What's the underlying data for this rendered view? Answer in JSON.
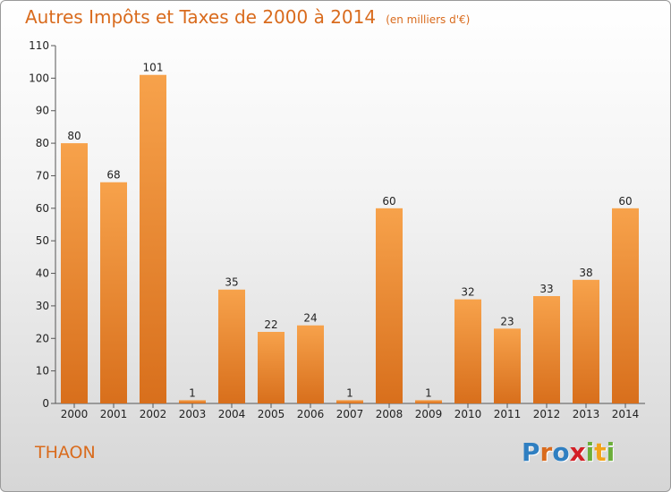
{
  "title": "Autres Impôts et Taxes de 2000 à 2014",
  "unit": "(en milliers d'€)",
  "town": "THAON",
  "logo": {
    "letters": [
      "P",
      "r",
      "o",
      "x",
      "i",
      "t",
      "i"
    ],
    "colors": [
      "#2f7fc1",
      "#d96b1d",
      "#2f7fc1",
      "#d31f26",
      "#6cae3a",
      "#f2a31b",
      "#6cae3a"
    ]
  },
  "colors": {
    "bar_top": "#f7a24b",
    "bar_bottom": "#d86f1c",
    "accent": "#d96b1d"
  },
  "chart_data": {
    "type": "bar",
    "categories": [
      "2000",
      "2001",
      "2002",
      "2003",
      "2004",
      "2005",
      "2006",
      "2007",
      "2008",
      "2009",
      "2010",
      "2011",
      "2012",
      "2013",
      "2014"
    ],
    "values": [
      80,
      68,
      101,
      1,
      35,
      22,
      24,
      1,
      60,
      1,
      32,
      23,
      33,
      38,
      60
    ],
    "ylim": [
      0,
      110
    ],
    "yticks": [
      0,
      10,
      20,
      30,
      40,
      50,
      60,
      70,
      80,
      90,
      100,
      110
    ],
    "grid": false,
    "data_labels": true
  }
}
